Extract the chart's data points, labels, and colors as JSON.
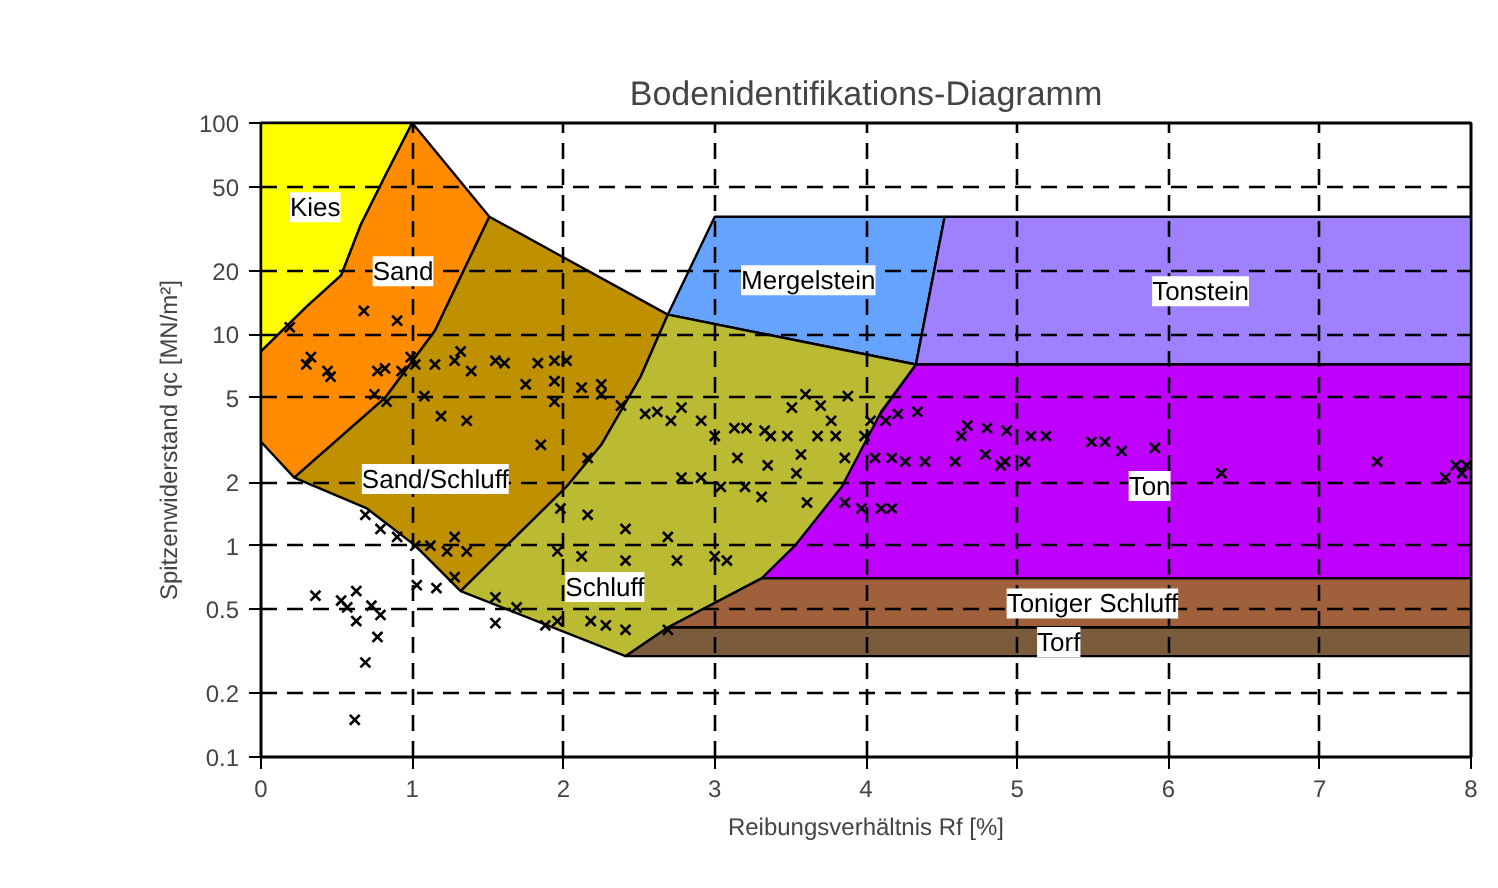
{
  "chart_data": {
    "type": "scatter",
    "title": "Bodenidentifikations-Diagramm",
    "xlabel": "Reibungsverhältnis Rf [%]",
    "ylabel": "Spitzenwiderstand qc [MN/m²]",
    "log": "y",
    "xlim": [
      0,
      8
    ],
    "ylim": [
      0.1,
      100
    ],
    "xticks": [
      0,
      1,
      2,
      3,
      4,
      5,
      6,
      7,
      8
    ],
    "yticks": [
      0.1,
      0.2,
      0.5,
      1,
      2,
      5,
      10,
      20,
      50,
      100
    ],
    "grid": true,
    "series": [
      {
        "type": "area",
        "name": "Kies",
        "color": "#ffff00",
        "x": [
          0,
          1.0,
          0.82,
          0.66,
          0.53,
          0.3,
          0
        ],
        "values": [
          100,
          100,
          56,
          33,
          19,
          13.5,
          8.3
        ]
      },
      {
        "type": "area",
        "name": "Sand",
        "color": "#ff8c00",
        "x": [
          0,
          0.3,
          0.53,
          0.66,
          0.82,
          1.0,
          1.51,
          1.15,
          0.82,
          0.22,
          0
        ],
        "values": [
          8.3,
          13.5,
          19,
          33,
          56,
          100,
          36,
          10.4,
          5.0,
          2.1,
          3.1
        ]
      },
      {
        "type": "area",
        "name": "Sand/Schluff",
        "color": "#bf9000",
        "x": [
          1.51,
          2.69,
          2.51,
          2.25,
          2.02,
          1.32,
          1.02,
          0.7,
          0.22,
          0.82,
          1.15
        ],
        "values": [
          36,
          12.4,
          6.3,
          3.0,
          1.9,
          0.61,
          1.0,
          1.5,
          2.1,
          5.0,
          10.4
        ]
      },
      {
        "type": "area",
        "name": "Mergelstein",
        "color": "#66a3ff",
        "x": [
          2.69,
          3.0,
          4.52,
          4.33
        ],
        "values": [
          12.4,
          36,
          36,
          7.2
        ]
      },
      {
        "type": "area",
        "name": "Tonstein",
        "color": "#9f80ff",
        "x": [
          4.52,
          8,
          8,
          4.33
        ],
        "values": [
          36,
          36,
          7.2,
          7.2
        ]
      },
      {
        "type": "area",
        "name": "Ton",
        "color": "#c000ff",
        "x": [
          4.33,
          8,
          8,
          3.31
        ],
        "values": [
          7.2,
          7.2,
          0.7,
          0.7
        ]
      },
      {
        "type": "area",
        "name": "Schluff",
        "color": "#bbbb33",
        "x": [
          2.69,
          4.33,
          4.1,
          3.84,
          3.53,
          3.31,
          2.69,
          2.41,
          1.32,
          2.02,
          2.25,
          2.51
        ],
        "values": [
          12.4,
          7.2,
          4.3,
          1.9,
          1.0,
          0.7,
          0.41,
          0.3,
          0.61,
          1.9,
          3.0,
          6.3
        ]
      },
      {
        "type": "area",
        "name": "Toniger Schluff",
        "color": "#a0603c",
        "x": [
          3.31,
          8,
          8,
          2.69
        ],
        "values": [
          0.7,
          0.7,
          0.41,
          0.41
        ]
      },
      {
        "type": "area",
        "name": "Torf",
        "color": "#7a5c3c",
        "x": [
          2.69,
          8,
          8,
          2.41
        ],
        "values": [
          0.41,
          0.41,
          0.3,
          0.3
        ]
      },
      {
        "color": "#000000",
        "marker": "cross",
        "x": [
          0.19,
          0.33,
          0.3,
          0.44,
          0.46,
          0.68,
          0.9,
          0.77,
          0.82,
          0.93,
          0.99,
          0.75,
          0.83,
          1.02,
          1.08,
          1.19,
          1.36,
          1.15,
          1.28,
          1.39,
          1.32,
          1.55,
          1.61,
          1.75,
          1.83,
          1.94,
          2.02,
          1.94,
          1.94,
          1.85,
          2.12,
          2.25,
          2.16,
          2.25,
          2.38,
          2.54,
          2.62,
          2.78,
          0.69,
          0.79,
          0.9,
          1.02,
          1.12,
          1.28,
          1.36,
          1.23,
          1.28,
          1.98,
          2.16,
          2.41,
          1.96,
          2.12,
          2.41,
          2.69,
          2.75,
          1.03,
          1.16,
          1.55,
          1.55,
          1.69,
          1.88,
          1.96,
          2.18,
          2.28,
          2.41,
          2.69,
          0.36,
          0.53,
          0.63,
          0.73,
          0.57,
          0.63,
          0.79,
          0.77,
          0.69,
          0.62,
          2.71,
          2.91,
          3.0,
          3.13,
          3.21,
          3.33,
          3.37,
          3.48,
          3.6,
          3.7,
          3.77,
          3.68,
          3.8,
          3.88,
          3.51,
          3.15,
          3.35,
          3.57,
          3.54,
          2.78,
          2.91,
          3.04,
          3.2,
          3.31,
          3.86,
          3.0,
          3.08,
          3.61,
          3.99,
          4.03,
          4.13,
          4.21,
          4.34,
          4.06,
          4.17,
          4.26,
          4.39,
          3.86,
          3.97,
          4.1,
          4.17,
          4.63,
          4.67,
          4.8,
          4.93,
          5.09,
          5.19,
          4.59,
          4.79,
          4.92,
          5.05,
          4.89,
          5.49,
          5.58,
          5.69,
          5.91,
          6.35,
          7.38,
          7.83,
          7.9,
          7.94,
          7.97
        ],
        "values": [
          10.8,
          7.8,
          7.2,
          6.7,
          6.3,
          12.9,
          11.6,
          6.7,
          6.9,
          6.7,
          7.8,
          5.2,
          4.8,
          7.2,
          5.1,
          4.1,
          3.9,
          7.2,
          7.5,
          6.7,
          8.3,
          7.5,
          7.3,
          5.8,
          7.3,
          7.5,
          7.5,
          6.0,
          4.8,
          3.0,
          5.6,
          5.8,
          2.6,
          5.2,
          4.6,
          4.2,
          4.3,
          4.5,
          1.4,
          1.2,
          1.1,
          1.0,
          1.0,
          1.1,
          0.94,
          0.94,
          0.71,
          1.5,
          1.4,
          1.2,
          0.94,
          0.89,
          0.85,
          1.1,
          0.85,
          0.65,
          0.63,
          0.57,
          0.43,
          0.51,
          0.42,
          0.44,
          0.44,
          0.42,
          0.4,
          0.4,
          0.58,
          0.55,
          0.61,
          0.52,
          0.51,
          0.44,
          0.47,
          0.37,
          0.28,
          0.15,
          3.9,
          3.9,
          3.3,
          3.6,
          3.6,
          3.5,
          3.3,
          3.3,
          5.2,
          4.6,
          3.9,
          3.3,
          3.3,
          5.1,
          4.5,
          2.6,
          2.4,
          2.7,
          2.2,
          2.1,
          2.1,
          1.9,
          1.9,
          1.7,
          2.6,
          0.89,
          0.85,
          1.6,
          3.3,
          3.9,
          3.9,
          4.2,
          4.3,
          2.6,
          2.6,
          2.5,
          2.5,
          1.6,
          1.5,
          1.5,
          1.5,
          3.3,
          3.7,
          3.6,
          3.5,
          3.3,
          3.3,
          2.5,
          2.7,
          2.5,
          2.5,
          2.4,
          3.1,
          3.1,
          2.8,
          2.9,
          2.2,
          2.5,
          2.1,
          2.4,
          2.2,
          2.4
        ]
      }
    ]
  }
}
